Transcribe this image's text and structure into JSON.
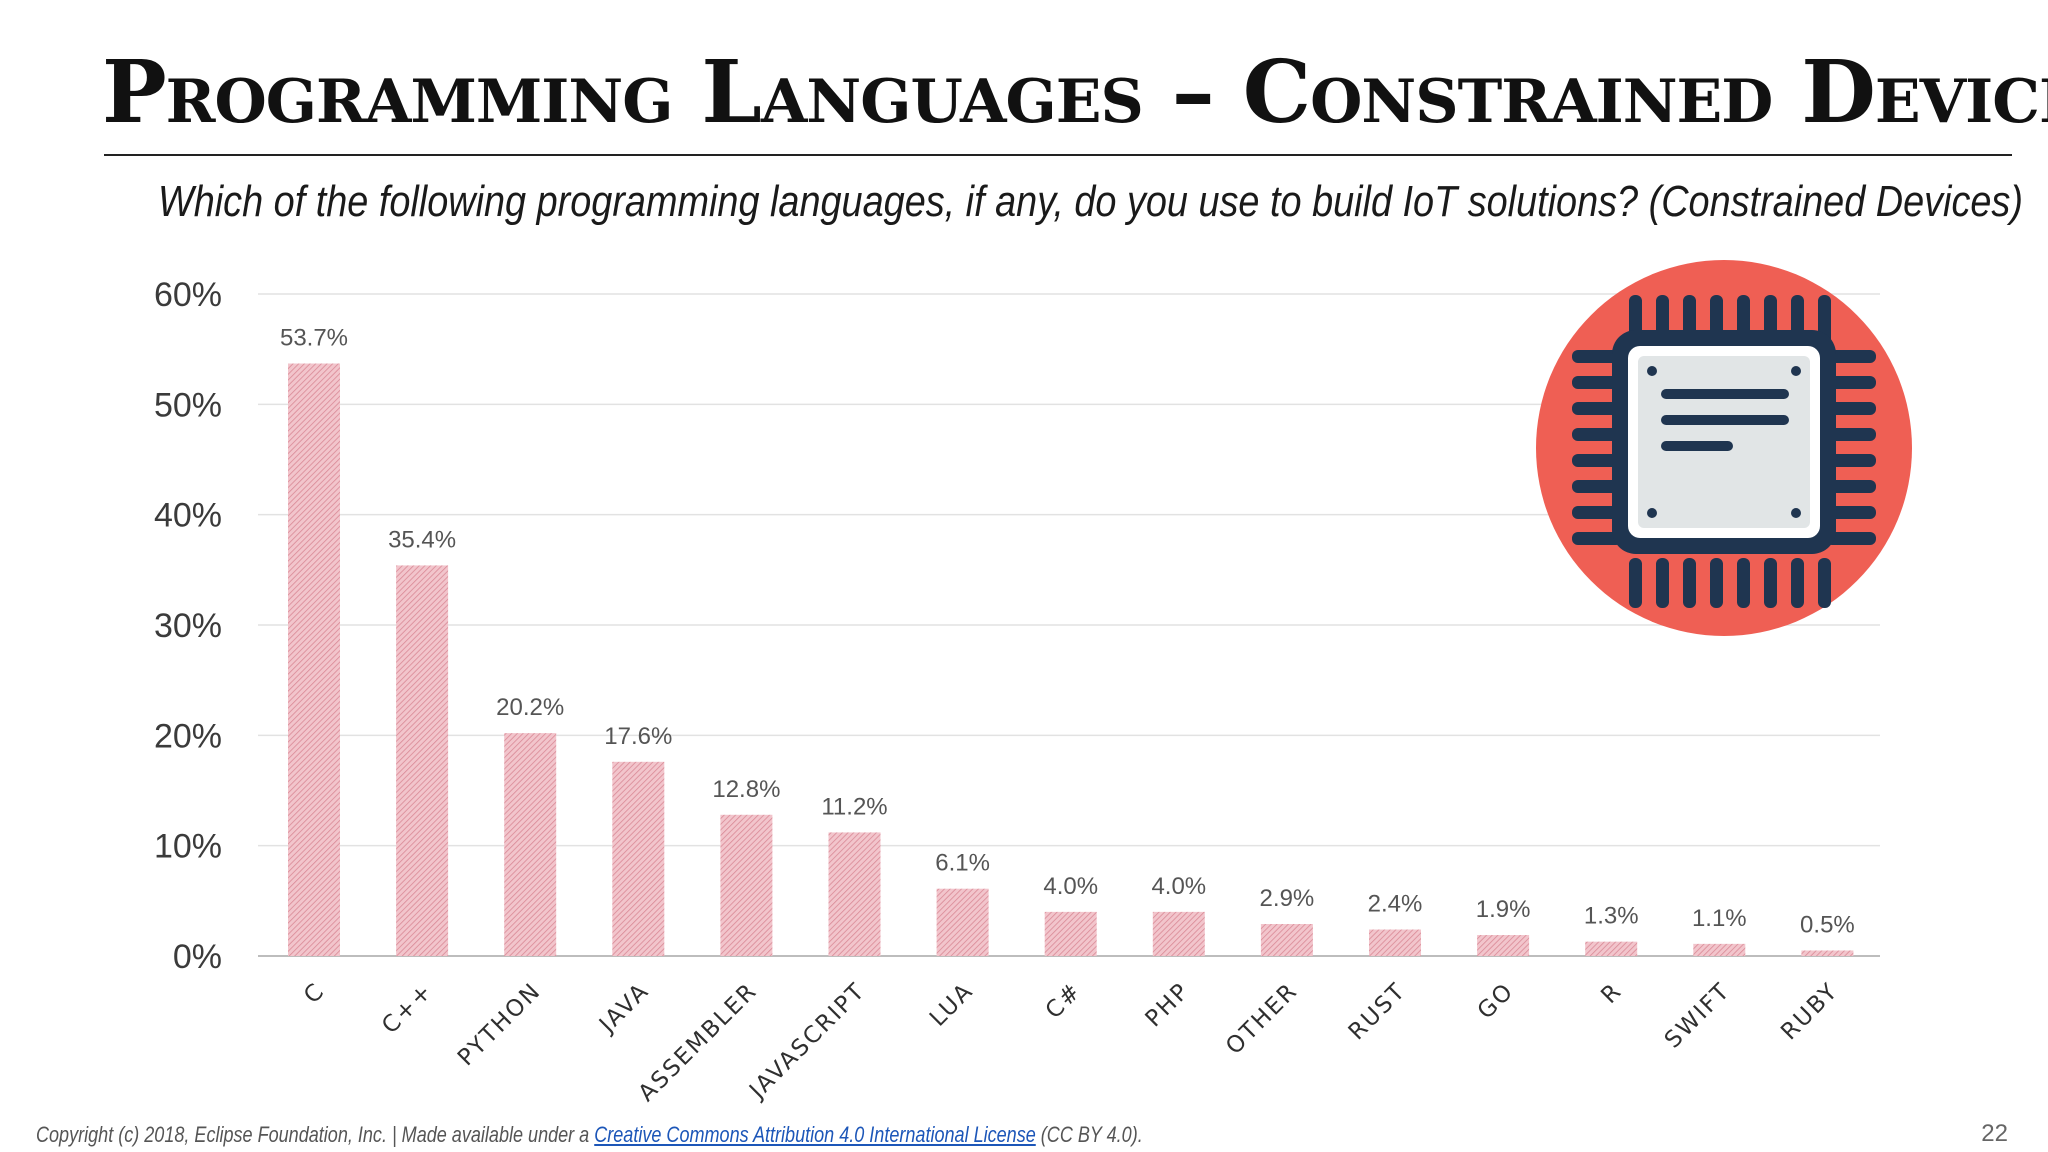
{
  "slide": {
    "title": "Programming Languages – Constrained Devices",
    "subtitle": "Which of the following programming languages, if any, do you use to build IoT solutions? (Constrained Devices)",
    "footer_prefix": "Copyright (c) 2018, Eclipse Foundation, Inc. | Made available under a ",
    "footer_link": "Creative Commons Attribution 4.0 International License",
    "footer_suffix": " (CC BY 4.0).",
    "page_number": "22"
  },
  "icon": {
    "name": "microchip-icon",
    "circle_color": "#ef5f54",
    "chip_color": "#1f3550",
    "chip_fill": "#e1e5e6"
  },
  "chart_data": {
    "type": "bar",
    "title": "",
    "xlabel": "",
    "ylabel": "",
    "ylim": [
      0,
      60
    ],
    "yticks": [
      0,
      10,
      20,
      30,
      40,
      50,
      60
    ],
    "ytick_labels": [
      "0%",
      "10%",
      "20%",
      "30%",
      "40%",
      "50%",
      "60%"
    ],
    "grid": true,
    "bar_color": "#e8a3ae",
    "categories": [
      "C",
      "C++",
      "PYTHON",
      "JAVA",
      "ASSEMBLER",
      "JAVASCRIPT",
      "LUA",
      "C#",
      "PHP",
      "OTHER",
      "RUST",
      "GO",
      "R",
      "SWIFT",
      "RUBY"
    ],
    "values": [
      53.7,
      35.4,
      20.2,
      17.6,
      12.8,
      11.2,
      6.1,
      4.0,
      4.0,
      2.9,
      2.4,
      1.9,
      1.3,
      1.1,
      0.5
    ],
    "value_labels": [
      "53.7%",
      "35.4%",
      "20.2%",
      "17.6%",
      "12.8%",
      "11.2%",
      "6.1%",
      "4.0%",
      "4.0%",
      "2.9%",
      "2.4%",
      "1.9%",
      "1.3%",
      "1.1%",
      "0.5%"
    ]
  }
}
